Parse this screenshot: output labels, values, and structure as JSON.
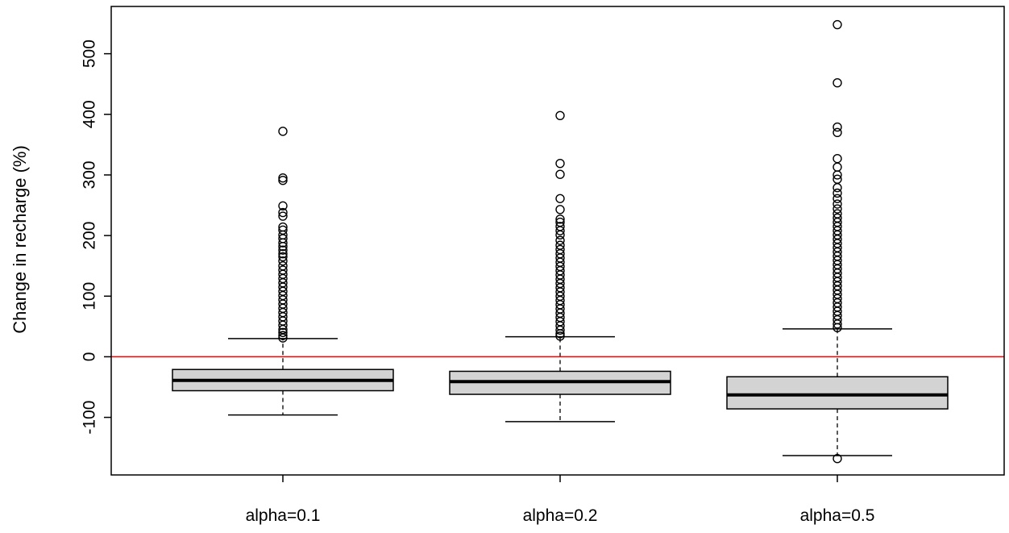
{
  "chart_data": {
    "type": "box",
    "title": "",
    "xlabel": "",
    "ylabel": "Change in recharge (%)",
    "categories": [
      "alpha=0.1",
      "alpha=0.2",
      "alpha=0.5"
    ],
    "ylim": [
      -195,
      578
    ],
    "yticks": [
      "-100",
      "0",
      "100",
      "200",
      "300",
      "400",
      "500"
    ],
    "reference_line": {
      "y": 0,
      "color": "#ff0000"
    },
    "box_fill": "#d3d3d3",
    "boxes": [
      {
        "label": "alpha=0.1",
        "whisker_low": -96,
        "q1": -56,
        "median": -39,
        "q3": -21,
        "whisker_high": 30,
        "outliers": [
          372,
          295,
          291,
          249,
          238,
          232,
          214,
          209,
          201,
          195,
          188,
          182,
          176,
          170,
          165,
          158,
          150,
          143,
          136,
          129,
          122,
          115,
          108,
          101,
          94,
          87,
          80,
          73,
          66,
          59,
          52,
          45,
          40,
          35,
          31
        ]
      },
      {
        "label": "alpha=0.2",
        "whisker_low": -107,
        "q1": -62,
        "median": -41,
        "q3": -24,
        "whisker_high": 33,
        "outliers": [
          398,
          319,
          301,
          261,
          243,
          227,
          222,
          215,
          208,
          201,
          192,
          184,
          177,
          170,
          163,
          156,
          149,
          142,
          135,
          128,
          121,
          114,
          107,
          100,
          93,
          86,
          79,
          72,
          65,
          58,
          51,
          44,
          38,
          34
        ]
      },
      {
        "label": "alpha=0.5",
        "whisker_low": -163,
        "q1": -86,
        "median": -63,
        "q3": -33,
        "whisker_high": 46,
        "outliers": [
          548,
          452,
          379,
          370,
          327,
          313,
          300,
          293,
          279,
          270,
          261,
          252,
          244,
          236,
          229,
          222,
          215,
          208,
          201,
          194,
          187,
          180,
          173,
          166,
          159,
          152,
          145,
          138,
          131,
          124,
          117,
          110,
          103,
          96,
          89,
          82,
          75,
          68,
          61,
          54,
          48,
          -168
        ]
      }
    ]
  }
}
